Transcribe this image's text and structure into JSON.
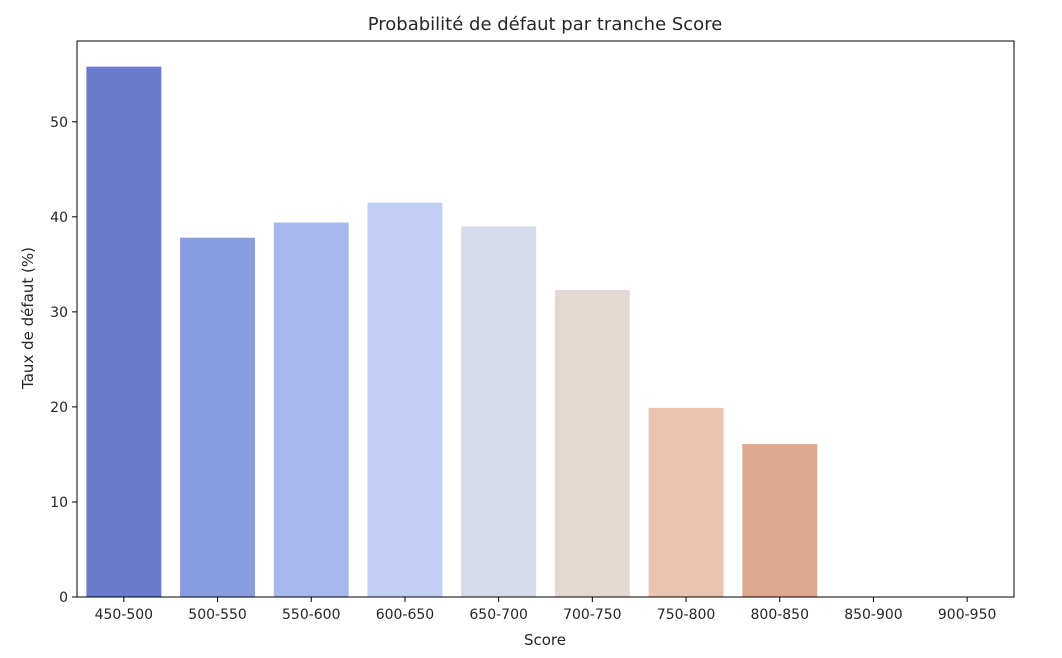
{
  "chart_data": {
    "type": "bar",
    "title": "Probabilité de défaut par tranche Score",
    "xlabel": "Score",
    "ylabel": "Taux de défaut (%)",
    "categories": [
      "450-500",
      "500-550",
      "550-600",
      "600-650",
      "650-700",
      "700-750",
      "750-800",
      "800-850",
      "850-900",
      "900-950"
    ],
    "values": [
      55.8,
      37.8,
      39.4,
      41.5,
      39.0,
      32.3,
      19.9,
      16.1,
      0,
      0
    ],
    "colors": [
      "#6a7bcd",
      "#889ce0",
      "#a6b9ee",
      "#c0cff2",
      "#d5dbe7",
      "#e3d8d2",
      "#e9c5b1",
      "#dea990",
      "#dea990",
      "#dea990"
    ],
    "ylim": [
      0,
      58.5
    ],
    "yticks": [
      0,
      10,
      20,
      30,
      40,
      50
    ],
    "grid": false,
    "legend": "none"
  }
}
